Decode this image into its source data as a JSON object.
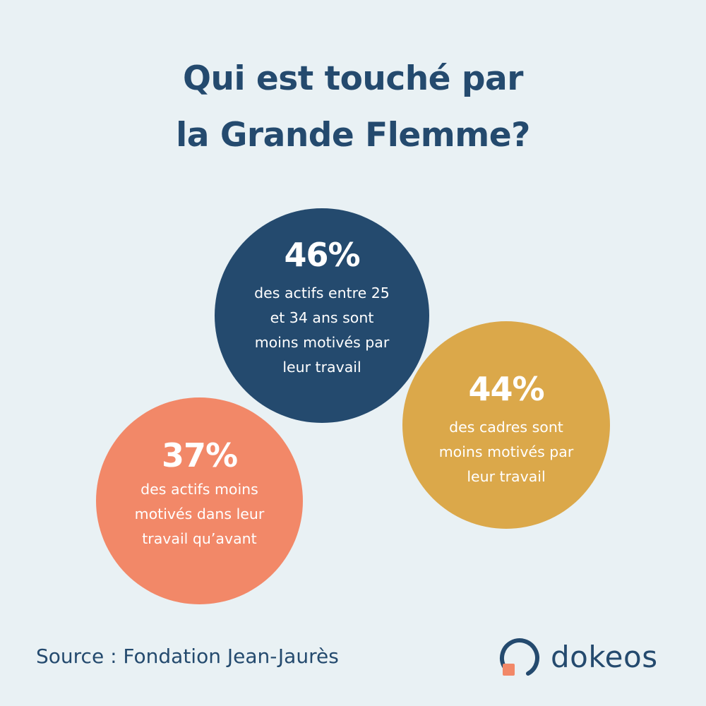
{
  "colors": {
    "background": "#e9f1f4",
    "title": "#244a6e",
    "navy": "#244a6e",
    "gold": "#dba84a",
    "coral": "#f28868",
    "text_on_bubble": "#ffffff",
    "source": "#244a6e",
    "logo_text": "#244a6e",
    "logo_square": "#f28868"
  },
  "title": {
    "line1": "Qui est touché par",
    "line2": "la Grande Flemme?"
  },
  "stats": [
    {
      "percent": "46%",
      "lines": [
        "des actifs entre 25",
        "et 34 ans sont",
        "moins motivés par",
        "leur travail"
      ],
      "color": "#244a6e"
    },
    {
      "percent": "44%",
      "lines": [
        "des cadres sont",
        "moins motivés par",
        "leur travail"
      ],
      "color": "#dba84a"
    },
    {
      "percent": "37%",
      "lines": [
        "des actifs moins",
        "motivés dans leur",
        "travail qu’avant"
      ],
      "color": "#f28868"
    }
  ],
  "source": "Source : Fondation Jean-Jaurès",
  "logo": {
    "name": "dokeos",
    "icon": "dokeos-logo-icon"
  }
}
